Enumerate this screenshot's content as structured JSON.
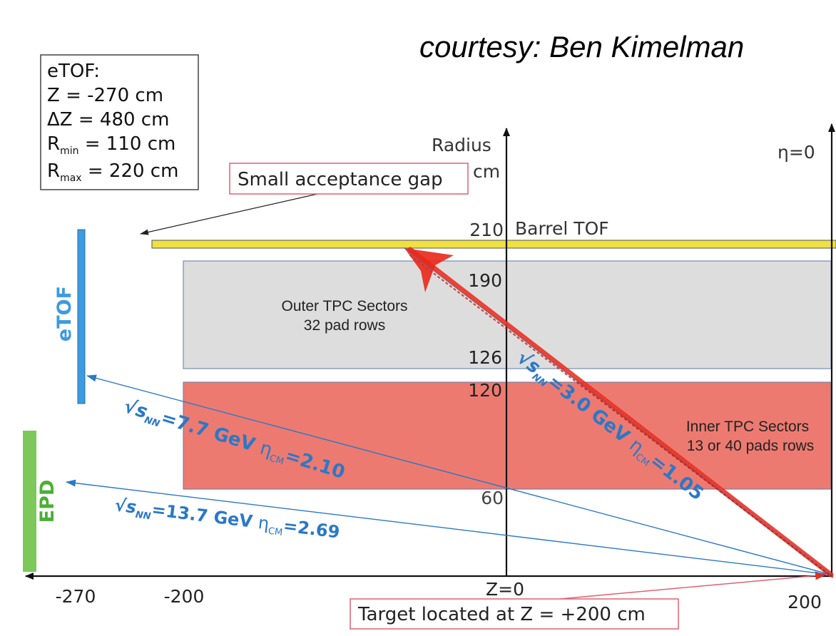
{
  "courtesy": "courtesy: Ben Kimelman",
  "info_box": {
    "title": "eTOF:",
    "z": "Z = -270 cm",
    "dz": "ΔZ = 480 cm",
    "rmin_r": "R",
    "rmin_sub": "min",
    "rmin_val": " = 110 cm",
    "rmax_r": "R",
    "rmax_sub": "max",
    "rmax_val": " = 220 cm"
  },
  "callouts": {
    "gap": "Small acceptance gap",
    "target": "Target located at Z = +200 cm"
  },
  "axes": {
    "radius_label": "Radius",
    "radius_unit": "cm",
    "eta_zero": "η=0",
    "z_zero": "Z=0",
    "x_ticks": [
      "-270",
      "-200",
      "200"
    ],
    "r_ticks": [
      "210",
      "190",
      "126",
      "120",
      "60"
    ]
  },
  "detectors": {
    "barrel_tof": "Barrel TOF",
    "outer_tpc_l1": "Outer TPC Sectors",
    "outer_tpc_l2": "32 pad rows",
    "inner_tpc_l1": "Inner TPC Sectors",
    "inner_tpc_l2": "13 or 40 pads rows",
    "etof": "eTOF",
    "epd": "EPD"
  },
  "tracks": {
    "t77": {
      "sqrt": "√",
      "s": "s",
      "sub_nn": "NN",
      "energy": "=7.7 GeV ",
      "eta": "η",
      "sub_cm": "CM",
      "eta_val": "=2.10"
    },
    "t137": {
      "sqrt": "√",
      "s": "s",
      "sub_nn": "NN",
      "energy": "=13.7 GeV ",
      "eta": "η",
      "sub_cm": "CM",
      "eta_val": "=2.69"
    },
    "t30": {
      "sqrt": "√",
      "s": "s",
      "sub_nn": "NN",
      "energy": "=3.0 GeV ",
      "eta": "η",
      "sub_cm": "CM",
      "eta_val": "=1.05"
    }
  },
  "colors": {
    "barrel_tof": "#f0e040",
    "outer_tpc": "#dddddd",
    "inner_tpc": "#ed7a70",
    "etof": "#3d9be0",
    "epd": "#7cc85a",
    "track_blue": "#2a78c8",
    "track_red": "#e82818",
    "callout_border": "#e06070"
  }
}
